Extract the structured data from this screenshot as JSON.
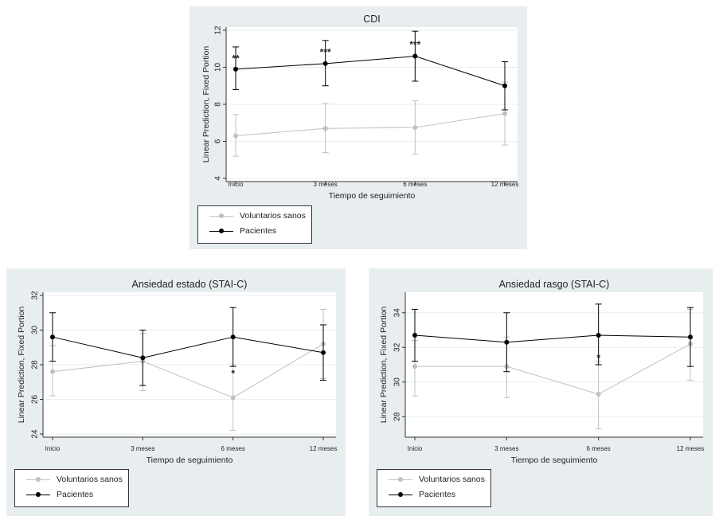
{
  "colors": {
    "patients": "#000000",
    "volunteers": "#c0c0c0",
    "panel_bg": "#e8eef0"
  },
  "chart_data": [
    {
      "type": "line",
      "title": "CDI",
      "xlabel": "Tiempo de seguimiento",
      "ylabel": "Linear Prediction, Fixed Portion",
      "categories": [
        "Inicio",
        "3 meses",
        "6 meses",
        "12 meses"
      ],
      "yticks": [
        4,
        6,
        8,
        10,
        12
      ],
      "ylim": [
        4,
        12
      ],
      "grid": true,
      "legend_position": "bottom-left",
      "series": [
        {
          "name": "Voluntarios sanos",
          "color": "#c0c0c0",
          "values": [
            6.3,
            6.7,
            6.75,
            7.5
          ],
          "lower": [
            5.2,
            5.4,
            5.3,
            5.8
          ],
          "upper": [
            7.45,
            8.05,
            8.2,
            9.2
          ]
        },
        {
          "name": "Pacientes",
          "color": "#000000",
          "values": [
            9.9,
            10.2,
            10.6,
            9.0
          ],
          "lower": [
            8.8,
            9.0,
            9.25,
            7.7
          ],
          "upper": [
            11.1,
            11.45,
            11.95,
            10.3
          ]
        }
      ],
      "annotations": [
        {
          "category": 0,
          "y": 10.3,
          "text": "**"
        },
        {
          "category": 1,
          "y": 10.65,
          "text": "***"
        },
        {
          "category": 2,
          "y": 11.05,
          "text": "***"
        }
      ]
    },
    {
      "type": "line",
      "title": "Ansiedad estado (STAI-C)",
      "xlabel": "Tiempo de seguimiento",
      "ylabel": "Linear Prediction, Fixed Portion",
      "categories": [
        "Inicio",
        "3 meses",
        "6 meses",
        "12 meses"
      ],
      "yticks": [
        24,
        26,
        28,
        30,
        32
      ],
      "ylim": [
        24,
        32
      ],
      "grid": true,
      "legend_position": "bottom-left",
      "series": [
        {
          "name": "Voluntarios sanos",
          "color": "#c0c0c0",
          "values": [
            27.6,
            28.2,
            26.1,
            29.2
          ],
          "lower": [
            26.2,
            26.5,
            24.2,
            27.2
          ],
          "upper": [
            29.1,
            29.8,
            28.0,
            31.2
          ]
        },
        {
          "name": "Pacientes",
          "color": "#000000",
          "values": [
            29.6,
            28.4,
            29.6,
            28.7
          ],
          "lower": [
            28.2,
            26.8,
            27.9,
            27.1
          ],
          "upper": [
            31.0,
            30.0,
            31.3,
            30.3
          ]
        }
      ],
      "annotations": [
        {
          "category": 2,
          "y": 27.3,
          "text": "*"
        }
      ]
    },
    {
      "type": "line",
      "title": "Ansiedad rasgo (STAI-C)",
      "xlabel": "Tiempo de seguimiento",
      "ylabel": "Linear Prediction, Fixed Portion",
      "categories": [
        "Inicio",
        "3 meses",
        "6 meses",
        "12 meses"
      ],
      "yticks": [
        28,
        30,
        32,
        34
      ],
      "ylim": [
        27,
        35
      ],
      "grid": true,
      "legend_position": "bottom-left",
      "series": [
        {
          "name": "Voluntarios sanos",
          "color": "#c0c0c0",
          "values": [
            30.9,
            30.9,
            29.3,
            32.2
          ],
          "lower": [
            29.2,
            29.1,
            27.3,
            30.1
          ],
          "upper": [
            32.4,
            32.6,
            31.2,
            34.2
          ]
        },
        {
          "name": "Pacientes",
          "color": "#000000",
          "values": [
            32.7,
            32.3,
            32.7,
            32.6
          ],
          "lower": [
            31.2,
            30.6,
            31.0,
            30.9
          ],
          "upper": [
            34.2,
            34.0,
            34.5,
            34.3
          ]
        }
      ],
      "annotations": [
        {
          "category": 2,
          "y": 31.2,
          "text": "*"
        }
      ]
    }
  ]
}
